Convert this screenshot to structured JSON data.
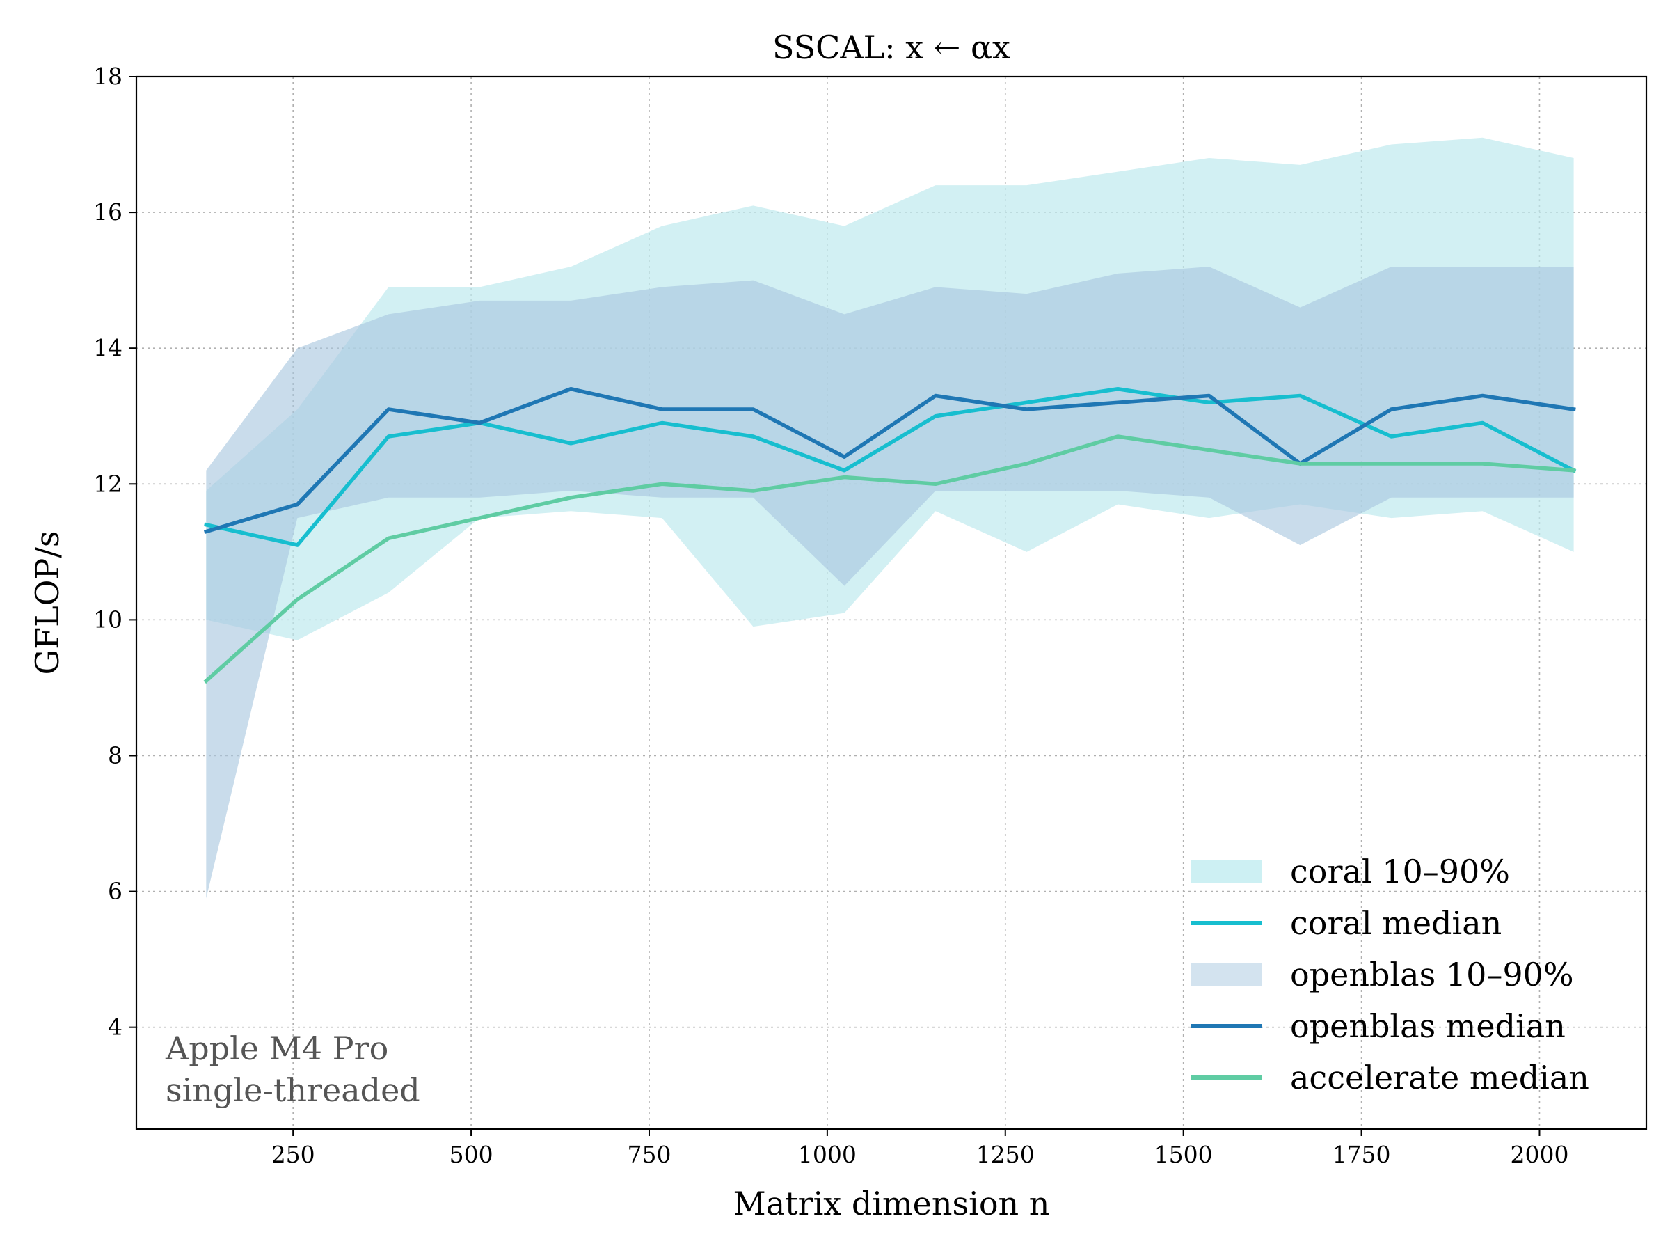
{
  "chart_data": {
    "type": "line",
    "title": "SSCAL: x ← αx",
    "xlabel": "Matrix dimension n",
    "ylabel": "GFLOP/s",
    "xlim": [
      30,
      2150
    ],
    "ylim": [
      2.5,
      18
    ],
    "xticks": [
      250,
      500,
      750,
      1000,
      1250,
      1500,
      1750,
      2000
    ],
    "yticks": [
      4,
      6,
      8,
      10,
      12,
      14,
      16,
      18
    ],
    "grid": true,
    "legend_position": "bottom-right",
    "annotation": [
      "Apple M4 Pro",
      "single-threaded"
    ],
    "x": [
      128,
      256,
      384,
      512,
      640,
      768,
      896,
      1024,
      1152,
      1280,
      1408,
      1536,
      1664,
      1792,
      1920,
      2048
    ],
    "bands": [
      {
        "name": "coral 10–90%",
        "color": "#bfeaee",
        "low": [
          10.0,
          9.7,
          10.4,
          11.5,
          11.6,
          11.5,
          9.9,
          10.1,
          11.6,
          11.0,
          11.7,
          11.5,
          11.7,
          11.5,
          11.6,
          11.0
        ],
        "high": [
          11.9,
          13.1,
          14.9,
          14.9,
          15.2,
          15.8,
          16.1,
          15.8,
          16.4,
          16.4,
          16.6,
          16.8,
          16.7,
          17.0,
          17.1,
          16.8
        ]
      },
      {
        "name": "openblas 10–90%",
        "color": "#a8c6de",
        "low": [
          5.9,
          11.5,
          11.8,
          11.8,
          11.9,
          11.8,
          11.8,
          10.5,
          11.9,
          11.9,
          11.9,
          11.8,
          11.1,
          11.8,
          11.8,
          11.8
        ],
        "high": [
          12.2,
          14.0,
          14.5,
          14.7,
          14.7,
          14.9,
          15.0,
          14.5,
          14.9,
          14.8,
          15.1,
          15.2,
          14.6,
          15.2,
          15.2,
          15.2
        ]
      }
    ],
    "series": [
      {
        "name": "coral median",
        "color": "#17becf",
        "values": [
          11.4,
          11.1,
          12.7,
          12.9,
          12.6,
          12.9,
          12.7,
          12.2,
          13.0,
          13.2,
          13.4,
          13.2,
          13.3,
          12.7,
          12.9,
          12.2
        ]
      },
      {
        "name": "openblas median",
        "color": "#1f77b4",
        "values": [
          11.3,
          11.7,
          13.1,
          12.9,
          13.4,
          13.1,
          13.1,
          12.4,
          13.3,
          13.1,
          13.2,
          13.3,
          12.3,
          13.1,
          13.3,
          13.1
        ]
      },
      {
        "name": "accelerate median",
        "color": "#5fcca3",
        "values": [
          9.1,
          10.3,
          11.2,
          11.5,
          11.8,
          12.0,
          11.9,
          12.1,
          12.0,
          12.3,
          12.7,
          12.5,
          12.3,
          12.3,
          12.3,
          12.2
        ]
      }
    ],
    "legend": [
      {
        "label": "coral 10–90%",
        "kind": "patch",
        "color": "#cdf0f3"
      },
      {
        "label": "coral median",
        "kind": "line",
        "color": "#17becf"
      },
      {
        "label": "openblas 10–90%",
        "kind": "patch",
        "color": "#d3e3ef"
      },
      {
        "label": "openblas median",
        "kind": "line",
        "color": "#1f77b4"
      },
      {
        "label": "accelerate median",
        "kind": "line",
        "color": "#5fcca3"
      }
    ]
  }
}
